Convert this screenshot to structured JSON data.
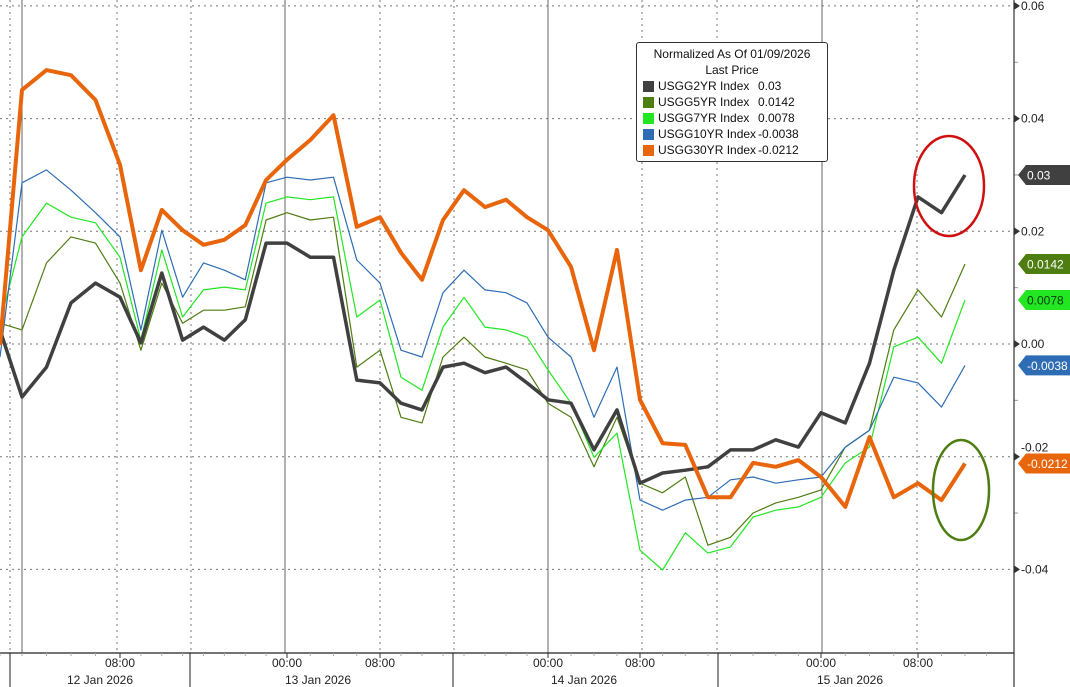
{
  "chart_data": {
    "type": "line",
    "title": "",
    "xlabel": "",
    "ylabel": "",
    "ylim": [
      -0.05,
      0.06
    ],
    "y_ticks": [
      "0.06",
      "0.04",
      "0.02",
      "0.00",
      "-0.02",
      "-0.04"
    ],
    "y_tick_values": [
      0.06,
      0.04,
      0.02,
      0.0,
      -0.02,
      -0.04
    ],
    "y_axis_side": "right",
    "grid": true,
    "legend_placement": "top-center",
    "legend": {
      "title": "Normalized As Of 01/09/2026",
      "subtitle": "Last Price"
    },
    "x_ticks": [
      {
        "time": "2026-01-12 08:00",
        "label": "08:00"
      },
      {
        "time": "2026-01-13 00:00",
        "label": "00:00"
      },
      {
        "time": "2026-01-13 08:00",
        "label": "08:00"
      },
      {
        "time": "2026-01-14 00:00",
        "label": "00:00"
      },
      {
        "time": "2026-01-14 08:00",
        "label": "08:00"
      },
      {
        "time": "2026-01-15 00:00",
        "label": "00:00"
      },
      {
        "time": "2026-01-15 08:00",
        "label": "08:00"
      }
    ],
    "date_labels": [
      "12 Jan 2026",
      "13 Jan 2026",
      "14 Jan 2026",
      "15 Jan 2026"
    ],
    "x": [
      "2026-01-11 22:00",
      "2026-01-12 00:00",
      "2026-01-12 02:00",
      "2026-01-12 04:00",
      "2026-01-12 06:00",
      "2026-01-12 08:00",
      "2026-01-12 10:00",
      "2026-01-12 12:00",
      "2026-01-12 14:00",
      "2026-01-12 16:00",
      "2026-01-12 18:00",
      "2026-01-12 20:00",
      "2026-01-12 22:00",
      "2026-01-13 00:00",
      "2026-01-13 02:00",
      "2026-01-13 04:00",
      "2026-01-13 06:00",
      "2026-01-13 08:00",
      "2026-01-13 10:00",
      "2026-01-13 12:00",
      "2026-01-13 14:00",
      "2026-01-13 16:00",
      "2026-01-13 18:00",
      "2026-01-13 20:00",
      "2026-01-13 22:00",
      "2026-01-14 00:00",
      "2026-01-14 02:00",
      "2026-01-14 04:00",
      "2026-01-14 06:00",
      "2026-01-14 08:00",
      "2026-01-14 10:00",
      "2026-01-14 12:00",
      "2026-01-14 14:00",
      "2026-01-14 16:00",
      "2026-01-14 18:00",
      "2026-01-14 20:00",
      "2026-01-14 22:00",
      "2026-01-15 00:00",
      "2026-01-15 02:00",
      "2026-01-15 04:00",
      "2026-01-15 06:00",
      "2026-01-15 08:00",
      "2026-01-15 10:00",
      "2026-01-15 12:00"
    ],
    "series": [
      {
        "name": "USGG2YR Index",
        "last": "0.03",
        "color": "#404040",
        "tag_text_color": "#ffffff",
        "values": [
          0.0025,
          -0.0094,
          -0.0041,
          0.0073,
          0.0108,
          0.0083,
          0.0002,
          0.0126,
          0.0007,
          0.003,
          0.0007,
          0.0043,
          0.0179,
          0.0179,
          0.0154,
          0.0154,
          -0.0064,
          -0.0069,
          -0.0105,
          -0.0117,
          -0.0041,
          -0.0034,
          -0.0051,
          -0.0041,
          -0.0069,
          -0.0099,
          -0.0105,
          -0.0188,
          -0.0117,
          -0.0247,
          -0.0229,
          -0.0224,
          -0.0218,
          -0.0188,
          -0.0188,
          -0.017,
          -0.0183,
          -0.0122,
          -0.014,
          -0.0034,
          0.0131,
          0.0261,
          0.0233,
          0.03
        ]
      },
      {
        "name": "USGG5YR Index",
        "last": "0.0142",
        "color": "#4e7d12",
        "tag_text_color": "#ffffff",
        "values": [
          0.0037,
          0.0025,
          0.0144,
          0.019,
          0.0179,
          0.0108,
          -0.0011,
          0.0108,
          0.0037,
          0.006,
          0.006,
          0.0066,
          0.022,
          0.0233,
          0.022,
          0.0225,
          -0.0041,
          -0.0011,
          -0.013,
          -0.014,
          -0.0023,
          0.0012,
          -0.0023,
          -0.0034,
          -0.0046,
          -0.0105,
          -0.013,
          -0.0218,
          -0.013,
          -0.0247,
          -0.0264,
          -0.0236,
          -0.0357,
          -0.0343,
          -0.03,
          -0.0282,
          -0.0272,
          -0.0259,
          -0.0183,
          -0.0153,
          0.0025,
          0.0096,
          0.0048,
          0.0142
        ]
      },
      {
        "name": "USGG7YR Index",
        "last": "0.0078",
        "color": "#22e622",
        "tag_text_color": "#0a3a0a",
        "values": [
          0.0037,
          0.019,
          0.025,
          0.0225,
          0.0215,
          0.0154,
          0.0007,
          0.0167,
          0.0048,
          0.0096,
          0.0101,
          0.0096,
          0.025,
          0.0261,
          0.0256,
          0.0261,
          0.0048,
          0.0078,
          -0.0059,
          -0.0082,
          0.003,
          0.0083,
          0.003,
          0.0025,
          0.0012,
          -0.0046,
          -0.0105,
          -0.0201,
          -0.0158,
          -0.0366,
          -0.0401,
          -0.0335,
          -0.0371,
          -0.036,
          -0.0307,
          -0.0295,
          -0.0289,
          -0.0272,
          -0.0211,
          -0.0183,
          -0.0005,
          0.0012,
          -0.0034,
          0.0078
        ]
      },
      {
        "name": "USGG10YR Index",
        "last": "-0.0038",
        "color": "#2e6db4",
        "tag_text_color": "#ffffff",
        "values": [
          -0.0023,
          0.0286,
          0.0309,
          0.0273,
          0.0233,
          0.019,
          0.0025,
          0.0202,
          0.0083,
          0.0144,
          0.0131,
          0.0114,
          0.0286,
          0.0296,
          0.0291,
          0.0296,
          0.0149,
          0.0108,
          -0.0011,
          -0.0023,
          0.0091,
          0.0131,
          0.0096,
          0.0091,
          0.0073,
          0.0012,
          -0.0023,
          -0.013,
          -0.0041,
          -0.0277,
          -0.0295,
          -0.0277,
          -0.0272,
          -0.0241,
          -0.0236,
          -0.0247,
          -0.0241,
          -0.0236,
          -0.0183,
          -0.0153,
          -0.0059,
          -0.0069,
          -0.0112,
          -0.0038
        ]
      },
      {
        "name": "USGG30YR Index",
        "last": "-0.0212",
        "color": "#e8650c",
        "tag_text_color": "#ffffff",
        "values": [
          -0.0002,
          0.0451,
          0.0486,
          0.0477,
          0.0433,
          0.0318,
          0.0131,
          0.0238,
          0.0202,
          0.0176,
          0.0185,
          0.0211,
          0.0291,
          0.0327,
          0.0362,
          0.0406,
          0.0208,
          0.0225,
          0.0162,
          0.0114,
          0.022,
          0.0273,
          0.0243,
          0.0256,
          0.0225,
          0.0202,
          0.0137,
          -0.0011,
          0.0167,
          -0.0099,
          -0.0176,
          -0.0179,
          -0.0272,
          -0.0272,
          -0.0211,
          -0.0218,
          -0.0206,
          -0.0236,
          -0.0289,
          -0.0165,
          -0.0272,
          -0.0247,
          -0.0277,
          -0.0212
        ]
      }
    ],
    "annotations": [
      {
        "shape": "ellipse",
        "color": "#d01010",
        "around": "USGG2YR Index"
      },
      {
        "shape": "ellipse",
        "color": "#4e7d12",
        "around": "USGG30YR Index"
      }
    ]
  }
}
